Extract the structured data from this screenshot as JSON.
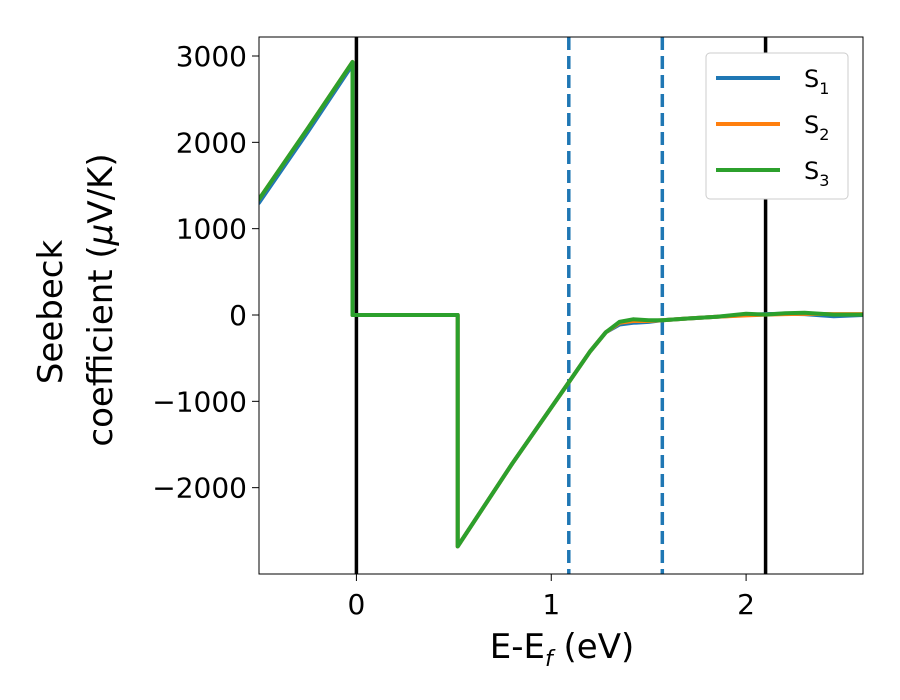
{
  "chart_data": {
    "type": "line",
    "title": "",
    "xlabel_main": "E-E",
    "xlabel_sub": "f",
    "xlabel_unit": " (eV)",
    "ylabel_line1": "Seebeck",
    "ylabel_line2_pre": "coefficient  (",
    "ylabel_line2_mu": "μ",
    "ylabel_line2_post": "V/K)",
    "xlim": [
      -0.5,
      2.6
    ],
    "ylim": [
      -3000,
      3220
    ],
    "xticks": [
      0,
      1,
      2
    ],
    "xtick_labels": [
      "0",
      "1",
      "2"
    ],
    "yticks": [
      -2000,
      -1000,
      0,
      1000,
      2000,
      3000
    ],
    "ytick_labels": [
      "−2000",
      "−1000",
      "0",
      "1000",
      "2000",
      "3000"
    ],
    "grid": false,
    "legend_position": "top-right",
    "vlines": [
      {
        "x": 0.0,
        "style": "solid",
        "color": "#000000"
      },
      {
        "x": 2.1,
        "style": "solid",
        "color": "#000000"
      },
      {
        "x": 1.09,
        "style": "dashed",
        "color": "#1f77b4"
      },
      {
        "x": 1.57,
        "style": "dashed",
        "color": "#1f77b4"
      }
    ],
    "series": [
      {
        "name": "S",
        "sub": "1",
        "color": "#1f77b4",
        "x": [
          -0.5,
          -0.25,
          -0.02,
          -0.02,
          0.52,
          0.52,
          0.8,
          1.09,
          1.2,
          1.28,
          1.35,
          1.42,
          1.5,
          1.57,
          1.7,
          1.85,
          2.0,
          2.1,
          2.2,
          2.3,
          2.45,
          2.6
        ],
        "y": [
          1300,
          2120,
          2900,
          0,
          0,
          -2680,
          -1720,
          -780,
          -420,
          -200,
          -110,
          -90,
          -80,
          -60,
          -40,
          -20,
          0,
          10,
          15,
          10,
          -15,
          0
        ]
      },
      {
        "name": "S",
        "sub": "2",
        "color": "#ff7f0e",
        "x": [
          -0.5,
          -0.25,
          -0.02,
          -0.02,
          0.52,
          0.52,
          0.8,
          1.09,
          1.2,
          1.28,
          1.35,
          1.42,
          1.5,
          1.57,
          1.7,
          1.85,
          2.0,
          2.1,
          2.2,
          2.3,
          2.45,
          2.6
        ],
        "y": [
          1340,
          2160,
          2930,
          0,
          0,
          -2680,
          -1720,
          -780,
          -420,
          -200,
          -90,
          -70,
          -70,
          -60,
          -40,
          -20,
          -5,
          5,
          10,
          15,
          10,
          10
        ]
      },
      {
        "name": "S",
        "sub": "3",
        "color": "#2ca02c",
        "x": [
          -0.5,
          -0.25,
          -0.02,
          -0.02,
          0.52,
          0.52,
          0.8,
          1.09,
          1.2,
          1.28,
          1.35,
          1.42,
          1.5,
          1.57,
          1.7,
          1.85,
          2.0,
          2.1,
          2.2,
          2.3,
          2.45,
          2.6
        ],
        "y": [
          1340,
          2160,
          2930,
          0,
          0,
          -2680,
          -1720,
          -780,
          -420,
          -200,
          -80,
          -50,
          -60,
          -60,
          -40,
          -20,
          15,
          5,
          20,
          25,
          5,
          5
        ]
      }
    ]
  }
}
